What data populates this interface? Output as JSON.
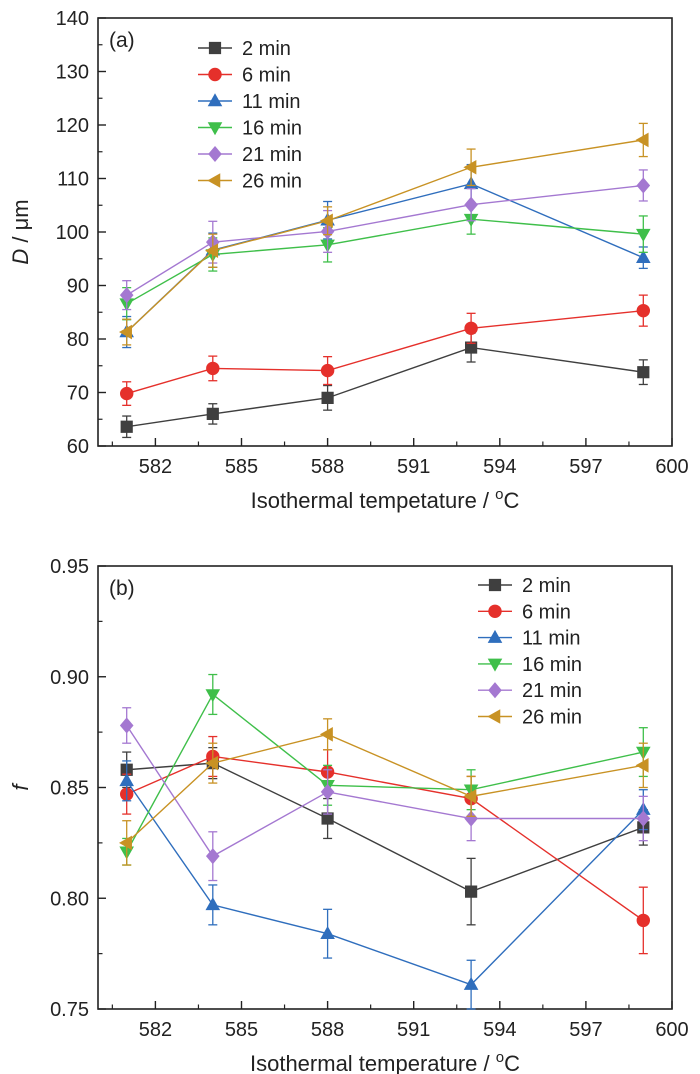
{
  "chart_data": [
    {
      "type": "line",
      "panel_label": "(a)",
      "xlabel": "Isothermal tempetature / ",
      "xlabel_sup": "o",
      "xlabel_unit": "C",
      "ylabel_italic": "D",
      "ylabel_rest": " / μm",
      "xlim": [
        580,
        600
      ],
      "ylim": [
        60,
        140
      ],
      "x_ticks": [
        "582",
        "585",
        "588",
        "591",
        "594",
        "597",
        "600"
      ],
      "y_ticks": [
        "60",
        "70",
        "80",
        "90",
        "100",
        "110",
        "120",
        "130",
        "140"
      ],
      "x": [
        581,
        584,
        588,
        593,
        599
      ],
      "legend_position": "top-left",
      "series": [
        {
          "name": "2 min",
          "color": "#3f3f3f",
          "marker": "square",
          "values": [
            63.6,
            66.0,
            69.0,
            78.4,
            73.8
          ],
          "errors": [
            2.0,
            1.9,
            2.3,
            2.7,
            2.3
          ]
        },
        {
          "name": "6 min",
          "color": "#e5302b",
          "marker": "circle",
          "values": [
            69.8,
            74.5,
            74.1,
            82.0,
            85.3
          ],
          "errors": [
            2.2,
            2.3,
            2.6,
            2.8,
            2.9
          ]
        },
        {
          "name": "11 min",
          "color": "#2f6ebd",
          "marker": "triangle-up",
          "values": [
            81.3,
            96.6,
            102.2,
            109.0,
            95.2
          ],
          "errors": [
            2.9,
            3.2,
            3.5,
            3.6,
            2.0
          ]
        },
        {
          "name": "16 min",
          "color": "#3fbf4a",
          "marker": "triangle-down",
          "values": [
            86.6,
            95.8,
            97.6,
            102.4,
            99.6
          ],
          "errors": [
            3.0,
            3.1,
            3.2,
            2.8,
            3.4
          ]
        },
        {
          "name": "21 min",
          "color": "#a478d1",
          "marker": "diamond",
          "values": [
            88.2,
            98.1,
            100.1,
            105.1,
            108.7
          ],
          "errors": [
            2.7,
            3.9,
            3.9,
            3.0,
            2.9
          ]
        },
        {
          "name": "26 min",
          "color": "#c89224",
          "marker": "triangle-left",
          "values": [
            81.3,
            96.5,
            102.1,
            112.1,
            117.2
          ],
          "errors": [
            2.4,
            3.1,
            2.6,
            3.4,
            3.1
          ]
        }
      ]
    },
    {
      "type": "line",
      "panel_label": "(b)",
      "xlabel": "Isothermal temperature / ",
      "xlabel_sup": "o",
      "xlabel_unit": "C",
      "ylabel_italic": "f",
      "ylabel_rest": "",
      "xlim": [
        580,
        600
      ],
      "ylim": [
        0.75,
        0.95
      ],
      "x_ticks": [
        "582",
        "585",
        "588",
        "591",
        "594",
        "597",
        "600"
      ],
      "y_ticks": [
        "0.75",
        "0.80",
        "0.85",
        "0.90",
        "0.95"
      ],
      "x": [
        581,
        584,
        588,
        593,
        599
      ],
      "legend_position": "top-right",
      "series": [
        {
          "name": "2 min",
          "color": "#3f3f3f",
          "marker": "square",
          "values": [
            0.858,
            0.861,
            0.836,
            0.803,
            0.832
          ],
          "errors": [
            0.008,
            0.007,
            0.009,
            0.015,
            0.008
          ]
        },
        {
          "name": "6 min",
          "color": "#e5302b",
          "marker": "circle",
          "values": [
            0.847,
            0.864,
            0.857,
            0.845,
            0.79
          ],
          "errors": [
            0.009,
            0.009,
            0.01,
            0.01,
            0.015
          ]
        },
        {
          "name": "11 min",
          "color": "#2f6ebd",
          "marker": "triangle-up",
          "values": [
            0.853,
            0.797,
            0.784,
            0.761,
            0.84
          ],
          "errors": [
            0.009,
            0.009,
            0.011,
            0.011,
            0.009
          ]
        },
        {
          "name": "16 min",
          "color": "#3fbf4a",
          "marker": "triangle-down",
          "values": [
            0.821,
            0.892,
            0.851,
            0.849,
            0.866
          ],
          "errors": [
            0.006,
            0.009,
            0.009,
            0.009,
            0.011
          ]
        },
        {
          "name": "21 min",
          "color": "#a478d1",
          "marker": "diamond",
          "values": [
            0.878,
            0.819,
            0.848,
            0.836,
            0.836
          ],
          "errors": [
            0.008,
            0.011,
            0.01,
            0.01,
            0.01
          ]
        },
        {
          "name": "26 min",
          "color": "#c89224",
          "marker": "triangle-left",
          "values": [
            0.825,
            0.861,
            0.874,
            0.846,
            0.86
          ],
          "errors": [
            0.01,
            0.009,
            0.007,
            0.009,
            0.01
          ]
        }
      ]
    }
  ]
}
